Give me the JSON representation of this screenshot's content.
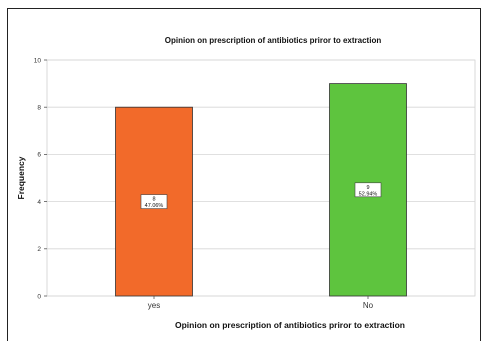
{
  "chart_data": {
    "type": "bar",
    "title": "Opinion on prescription of antibiotics priror to extraction",
    "xlabel": "Opinion on prescription of antibiotics priror to extraction",
    "ylabel": "Frequency",
    "categories": [
      "yes",
      "No"
    ],
    "values": [
      8,
      9
    ],
    "percent_labels": [
      "47.06%",
      "52.94%"
    ],
    "colors": [
      "#f26a2a",
      "#5ec43e"
    ],
    "ylim": [
      0,
      10
    ],
    "yticks": [
      0,
      2,
      4,
      6,
      8,
      10
    ],
    "grid": true,
    "legend": "none"
  }
}
